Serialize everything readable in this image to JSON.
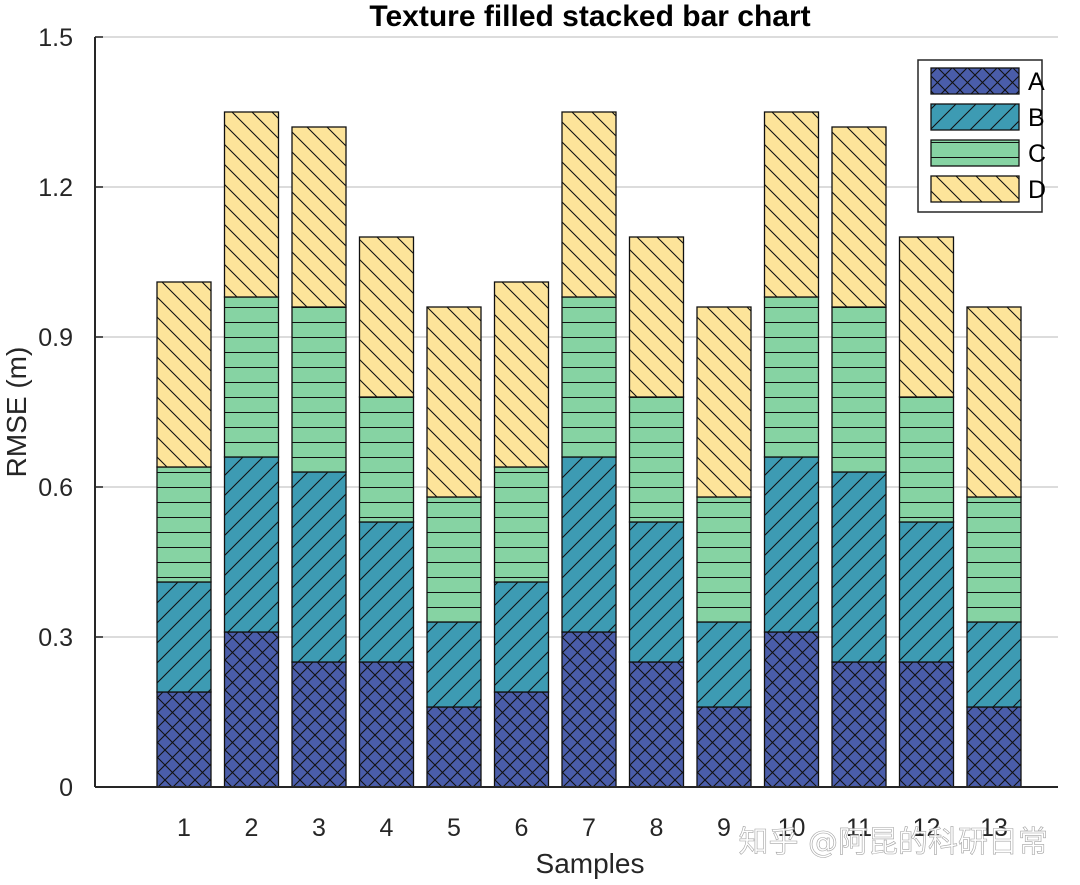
{
  "chart_data": {
    "type": "bar",
    "stacked": true,
    "title": "Texture filled stacked bar chart",
    "xlabel": "Samples",
    "ylabel": "RMSE (m)",
    "ylim": [
      0,
      1.5
    ],
    "yticks": [
      "0",
      "0.3",
      "0.6",
      "0.9",
      "1.2",
      "1.5"
    ],
    "ytick_values": [
      0,
      0.3,
      0.6,
      0.9,
      1.2,
      1.5
    ],
    "grid": "y",
    "legend_position": "top-right",
    "categories": [
      "1",
      "2",
      "3",
      "4",
      "5",
      "6",
      "7",
      "8",
      "9",
      "10",
      "11",
      "12",
      "13"
    ],
    "series": [
      {
        "name": "A",
        "color": "#4a5daa",
        "pattern": "crosshatch",
        "values": [
          0.19,
          0.31,
          0.25,
          0.25,
          0.16,
          0.19,
          0.31,
          0.25,
          0.16,
          0.31,
          0.25,
          0.25,
          0.16
        ]
      },
      {
        "name": "B",
        "color": "#3d9bb3",
        "pattern": "forward-diagonal",
        "values": [
          0.22,
          0.35,
          0.38,
          0.28,
          0.17,
          0.22,
          0.35,
          0.28,
          0.17,
          0.35,
          0.38,
          0.28,
          0.17
        ]
      },
      {
        "name": "C",
        "color": "#86d3a3",
        "pattern": "horizontal",
        "values": [
          0.23,
          0.32,
          0.33,
          0.25,
          0.25,
          0.23,
          0.32,
          0.25,
          0.25,
          0.32,
          0.33,
          0.25,
          0.25
        ]
      },
      {
        "name": "D",
        "color": "#fde49a",
        "pattern": "back-diagonal",
        "values": [
          0.37,
          0.37,
          0.36,
          0.32,
          0.38,
          0.37,
          0.37,
          0.32,
          0.38,
          0.37,
          0.36,
          0.32,
          0.38
        ]
      }
    ]
  },
  "watermark": "知乎 @阿昆的科研日常"
}
